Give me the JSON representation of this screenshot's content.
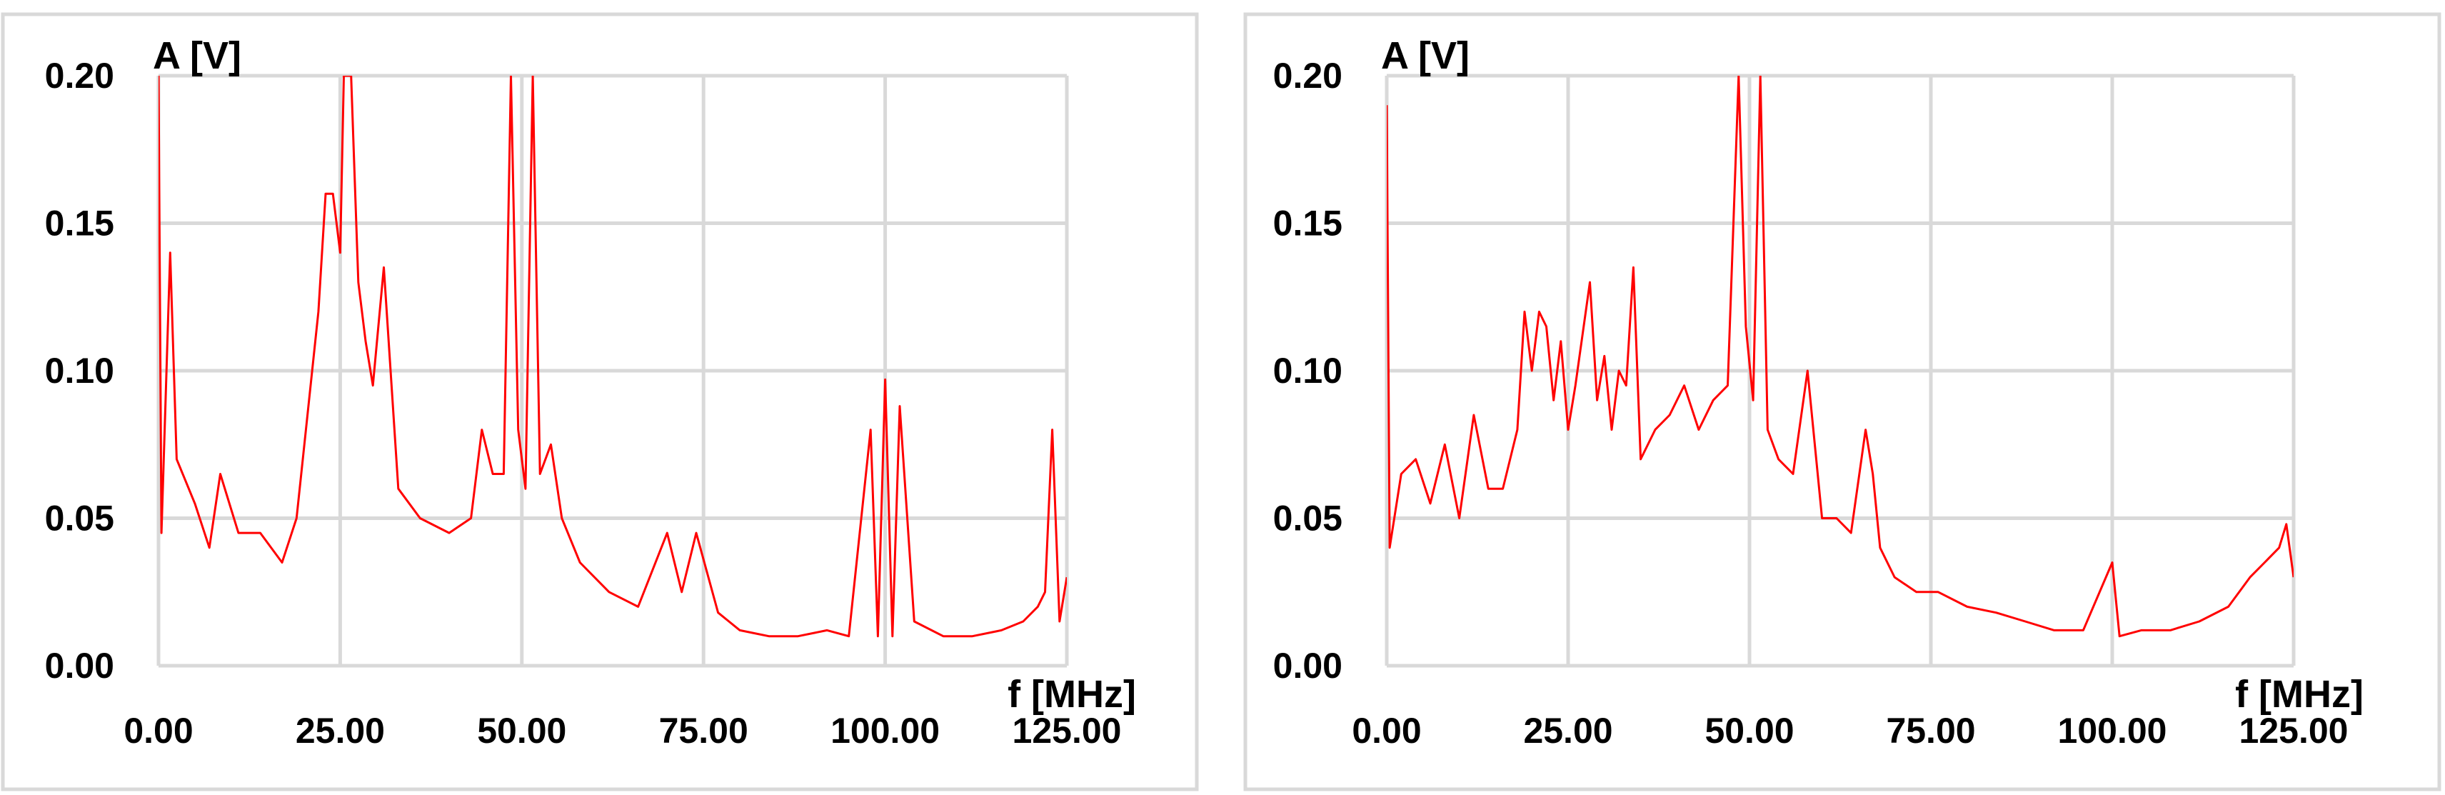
{
  "chart_data": [
    {
      "type": "line",
      "title": "",
      "xlabel": "f [MHz]",
      "ylabel": "A [V]",
      "xlim": [
        0,
        125
      ],
      "ylim": [
        0,
        0.2
      ],
      "grid": true,
      "legend": "none",
      "x_ticks": [
        "0.00",
        "25.00",
        "50.00",
        "75.00",
        "100.00",
        "125.00"
      ],
      "y_ticks": [
        "0.00",
        "0.05",
        "0.10",
        "0.15",
        "0.20"
      ],
      "series": [
        {
          "color": "#ff0000",
          "x": [
            0,
            0.4,
            1.6,
            2.5,
            5,
            7,
            8.5,
            11,
            14,
            17,
            19,
            20.5,
            22,
            23,
            24,
            25,
            25.5,
            26.5,
            27.5,
            28.5,
            29.5,
            31,
            33,
            36,
            40,
            43,
            44.5,
            46,
            47.5,
            48.5,
            49.5,
            50.5,
            51.5,
            52.5,
            54,
            55.5,
            58,
            62,
            66,
            70,
            72,
            74,
            77,
            80,
            84,
            88,
            92,
            95,
            98,
            99,
            100,
            101,
            102,
            104,
            108,
            112,
            116,
            119,
            121,
            122,
            123,
            124,
            125
          ],
          "y": [
            0.2,
            0.045,
            0.14,
            0.07,
            0.055,
            0.04,
            0.065,
            0.045,
            0.045,
            0.035,
            0.05,
            0.085,
            0.12,
            0.16,
            0.16,
            0.14,
            0.2,
            0.2,
            0.13,
            0.11,
            0.095,
            0.135,
            0.06,
            0.05,
            0.045,
            0.05,
            0.08,
            0.065,
            0.065,
            0.2,
            0.08,
            0.06,
            0.2,
            0.065,
            0.075,
            0.05,
            0.035,
            0.025,
            0.02,
            0.045,
            0.025,
            0.045,
            0.018,
            0.012,
            0.01,
            0.01,
            0.012,
            0.01,
            0.08,
            0.01,
            0.097,
            0.01,
            0.088,
            0.015,
            0.01,
            0.01,
            0.012,
            0.015,
            0.02,
            0.025,
            0.08,
            0.015,
            0.03
          ]
        }
      ]
    },
    {
      "type": "line",
      "title": "",
      "xlabel": "f [MHz]",
      "ylabel": "A [V]",
      "xlim": [
        0,
        125
      ],
      "ylim": [
        0,
        0.2
      ],
      "grid": true,
      "legend": "none",
      "x_ticks": [
        "0.00",
        "25.00",
        "50.00",
        "75.00",
        "100.00",
        "125.00"
      ],
      "y_ticks": [
        "0.00",
        "0.05",
        "0.10",
        "0.15",
        "0.20"
      ],
      "series": [
        {
          "color": "#ff0000",
          "x": [
            0,
            0.4,
            2,
            4,
            6,
            8,
            10,
            12,
            14,
            16,
            18,
            19,
            20,
            21,
            22,
            23,
            24,
            25,
            26,
            28,
            29,
            30,
            31,
            32,
            33,
            34,
            35,
            37,
            39,
            41,
            43,
            45,
            47,
            48.5,
            49.5,
            50.5,
            51.5,
            52.5,
            54,
            56,
            58,
            60,
            62,
            64,
            66,
            67,
            68,
            70,
            73,
            76,
            80,
            84,
            88,
            92,
            96,
            100,
            101,
            104,
            108,
            112,
            116,
            119,
            121,
            123,
            124,
            125
          ],
          "y": [
            0.19,
            0.04,
            0.065,
            0.07,
            0.055,
            0.075,
            0.05,
            0.085,
            0.06,
            0.06,
            0.08,
            0.12,
            0.1,
            0.12,
            0.115,
            0.09,
            0.11,
            0.08,
            0.095,
            0.13,
            0.09,
            0.105,
            0.08,
            0.1,
            0.095,
            0.135,
            0.07,
            0.08,
            0.085,
            0.095,
            0.08,
            0.09,
            0.095,
            0.2,
            0.115,
            0.09,
            0.2,
            0.08,
            0.07,
            0.065,
            0.1,
            0.05,
            0.05,
            0.045,
            0.08,
            0.065,
            0.04,
            0.03,
            0.025,
            0.025,
            0.02,
            0.018,
            0.015,
            0.012,
            0.012,
            0.035,
            0.01,
            0.012,
            0.012,
            0.015,
            0.02,
            0.03,
            0.035,
            0.04,
            0.048,
            0.03
          ]
        }
      ]
    }
  ]
}
